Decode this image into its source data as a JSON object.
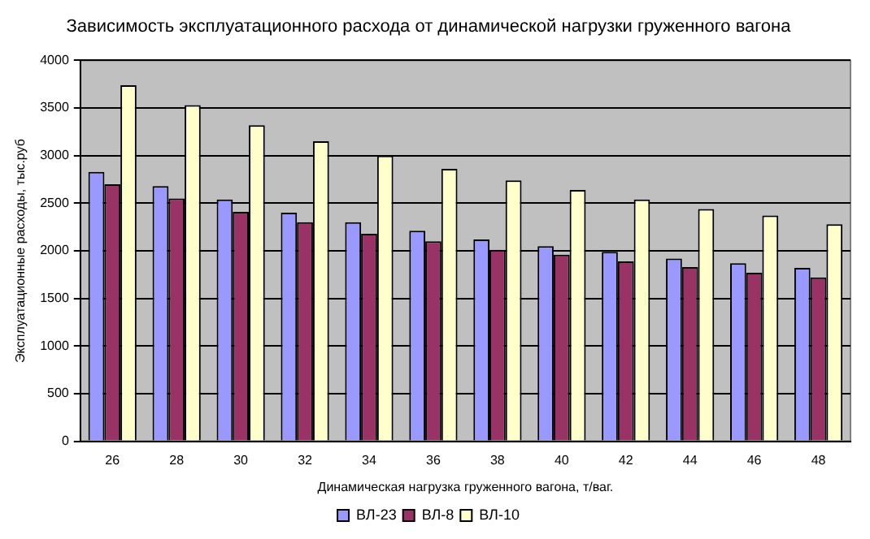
{
  "chart_data": {
    "type": "bar",
    "title": "Зависимость эксплуатационного расхода от динамической нагрузки груженного вагона",
    "xlabel": "Динамическая нагрузка груженного вагона, т/ваг.",
    "ylabel": "Эксплуатационные расходы, тыс.руб",
    "categories": [
      "26",
      "28",
      "30",
      "32",
      "34",
      "36",
      "38",
      "40",
      "42",
      "44",
      "46",
      "48"
    ],
    "series": [
      {
        "name": "ВЛ-23",
        "color": "#9999ff",
        "values": [
          2830,
          2680,
          2540,
          2400,
          2300,
          2210,
          2120,
          2050,
          1990,
          1920,
          1870,
          1820
        ]
      },
      {
        "name": "ВЛ-8",
        "color": "#993366",
        "values": [
          2700,
          2550,
          2410,
          2300,
          2180,
          2100,
          2010,
          1960,
          1890,
          1830,
          1770,
          1720
        ]
      },
      {
        "name": "ВЛ-10",
        "color": "#ffffcc",
        "values": [
          3740,
          3530,
          3320,
          3150,
          3000,
          2860,
          2740,
          2640,
          2540,
          2440,
          2370,
          2280
        ]
      }
    ],
    "ylim": [
      0,
      4000
    ],
    "yticks": [
      0,
      500,
      1000,
      1500,
      2000,
      2500,
      3000,
      3500,
      4000
    ],
    "grid": "y",
    "legend": "bottom"
  }
}
